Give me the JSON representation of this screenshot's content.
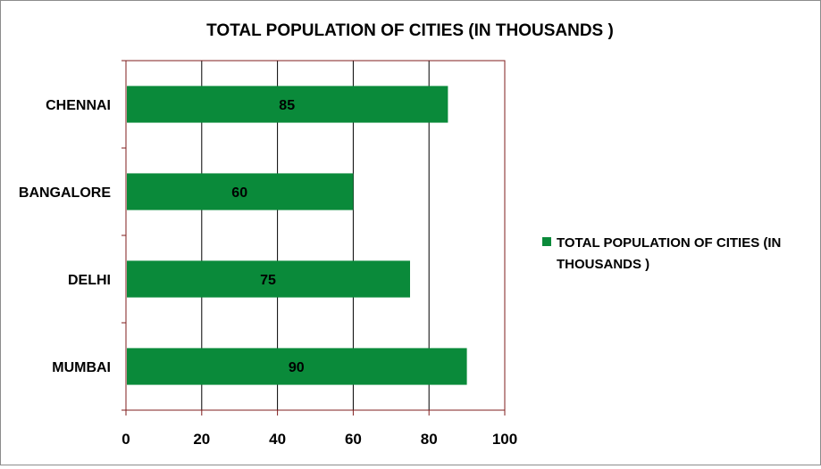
{
  "chart_data": {
    "type": "bar",
    "orientation": "horizontal",
    "title": "TOTAL POPULATION OF CITIES (IN THOUSANDS )",
    "categories": [
      "CHENNAI",
      "BANGALORE",
      "DELHI",
      "MUMBAI"
    ],
    "series": [
      {
        "name": "TOTAL POPULATION OF CITIES (IN THOUSANDS )",
        "values": [
          85,
          60,
          75,
          90
        ],
        "color": "#0a8a3a"
      }
    ],
    "data_labels": [
      "85",
      "60",
      "75",
      "90"
    ],
    "xlim": [
      0,
      100
    ],
    "x_ticks": [
      "0",
      "20",
      "40",
      "60",
      "80",
      "100"
    ],
    "grid": true,
    "legend": {
      "placement": "right",
      "lines": [
        "TOTAL POPULATION OF CITIES (IN",
        "THOUSANDS )"
      ]
    },
    "colors": {
      "bar": "#0a8a3a",
      "gridline": "#000000",
      "plot_border": "#7f1d1d"
    }
  }
}
